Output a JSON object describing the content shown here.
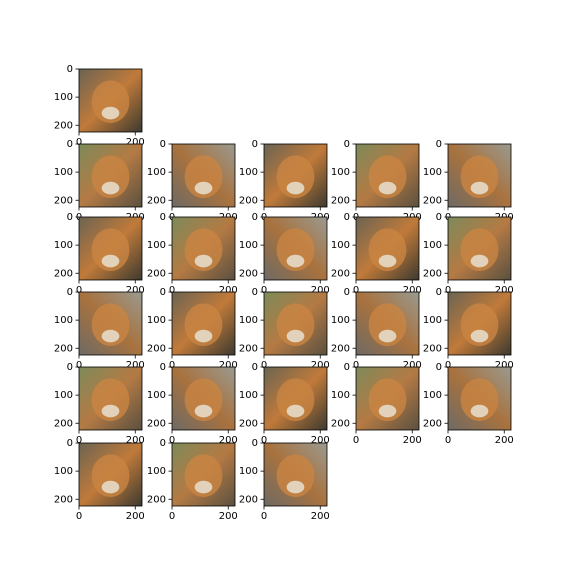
{
  "chart_data": [
    {
      "type": "image",
      "xlim": [
        0,
        224
      ],
      "ylim": [
        224,
        0
      ],
      "xticks": [
        0,
        200
      ],
      "yticks": [
        0,
        100,
        200
      ]
    },
    {
      "type": "image",
      "xlim": [
        0,
        224
      ],
      "ylim": [
        224,
        0
      ],
      "xticks": [
        0,
        200
      ],
      "yticks": [
        0,
        100,
        200
      ]
    },
    {
      "type": "image",
      "xlim": [
        0,
        224
      ],
      "ylim": [
        224,
        0
      ],
      "xticks": [
        0,
        200
      ],
      "yticks": [
        0,
        100,
        200
      ]
    },
    {
      "type": "image",
      "xlim": [
        0,
        224
      ],
      "ylim": [
        224,
        0
      ],
      "xticks": [
        0,
        200
      ],
      "yticks": [
        0,
        100,
        200
      ]
    },
    {
      "type": "image",
      "xlim": [
        0,
        224
      ],
      "ylim": [
        224,
        0
      ],
      "xticks": [
        0,
        200
      ],
      "yticks": [
        0,
        100,
        200
      ]
    },
    {
      "type": "image",
      "xlim": [
        0,
        224
      ],
      "ylim": [
        224,
        0
      ],
      "xticks": [
        0,
        200
      ],
      "yticks": [
        0,
        100,
        200
      ]
    },
    {
      "type": "image",
      "xlim": [
        0,
        224
      ],
      "ylim": [
        224,
        0
      ],
      "xticks": [
        0,
        200
      ],
      "yticks": [
        0,
        100,
        200
      ]
    },
    {
      "type": "image",
      "xlim": [
        0,
        224
      ],
      "ylim": [
        224,
        0
      ],
      "xticks": [
        0,
        200
      ],
      "yticks": [
        0,
        100,
        200
      ]
    },
    {
      "type": "image",
      "xlim": [
        0,
        224
      ],
      "ylim": [
        224,
        0
      ],
      "xticks": [
        0,
        200
      ],
      "yticks": [
        0,
        100,
        200
      ]
    },
    {
      "type": "image",
      "xlim": [
        0,
        224
      ],
      "ylim": [
        224,
        0
      ],
      "xticks": [
        0,
        200
      ],
      "yticks": [
        0,
        100,
        200
      ]
    },
    {
      "type": "image",
      "xlim": [
        0,
        224
      ],
      "ylim": [
        224,
        0
      ],
      "xticks": [
        0,
        200
      ],
      "yticks": [
        0,
        100,
        200
      ]
    },
    {
      "type": "image",
      "xlim": [
        0,
        224
      ],
      "ylim": [
        224,
        0
      ],
      "xticks": [
        0,
        200
      ],
      "yticks": [
        0,
        100,
        200
      ]
    },
    {
      "type": "image",
      "xlim": [
        0,
        224
      ],
      "ylim": [
        224,
        0
      ],
      "xticks": [
        0,
        200
      ],
      "yticks": [
        0,
        100,
        200
      ]
    },
    {
      "type": "image",
      "xlim": [
        0,
        224
      ],
      "ylim": [
        224,
        0
      ],
      "xticks": [
        0,
        200
      ],
      "yticks": [
        0,
        100,
        200
      ]
    },
    {
      "type": "image",
      "xlim": [
        0,
        224
      ],
      "ylim": [
        224,
        0
      ],
      "xticks": [
        0,
        200
      ],
      "yticks": [
        0,
        100,
        200
      ]
    },
    {
      "type": "image",
      "xlim": [
        0,
        224
      ],
      "ylim": [
        224,
        0
      ],
      "xticks": [
        0,
        200
      ],
      "yticks": [
        0,
        100,
        200
      ]
    },
    {
      "type": "image",
      "xlim": [
        0,
        224
      ],
      "ylim": [
        224,
        0
      ],
      "xticks": [
        0,
        200
      ],
      "yticks": [
        0,
        100,
        200
      ]
    },
    {
      "type": "image",
      "xlim": [
        0,
        224
      ],
      "ylim": [
        224,
        0
      ],
      "xticks": [
        0,
        200
      ],
      "yticks": [
        0,
        100,
        200
      ]
    },
    {
      "type": "image",
      "xlim": [
        0,
        224
      ],
      "ylim": [
        224,
        0
      ],
      "xticks": [
        0,
        200
      ],
      "yticks": [
        0,
        100,
        200
      ]
    },
    {
      "type": "image",
      "xlim": [
        0,
        224
      ],
      "ylim": [
        224,
        0
      ],
      "xticks": [
        0,
        200
      ],
      "yticks": [
        0,
        100,
        200
      ]
    },
    {
      "type": "image",
      "xlim": [
        0,
        224
      ],
      "ylim": [
        224,
        0
      ],
      "xticks": [
        0,
        200
      ],
      "yticks": [
        0,
        100,
        200
      ]
    },
    {
      "type": "image",
      "xlim": [
        0,
        224
      ],
      "ylim": [
        224,
        0
      ],
      "xticks": [
        0,
        200
      ],
      "yticks": [
        0,
        100,
        200
      ]
    },
    {
      "type": "image",
      "xlim": [
        0,
        224
      ],
      "ylim": [
        224,
        0
      ],
      "xticks": [
        0,
        200
      ],
      "yticks": [
        0,
        100,
        200
      ]
    },
    {
      "type": "image",
      "xlim": [
        0,
        224
      ],
      "ylim": [
        224,
        0
      ],
      "xticks": [
        0,
        200
      ],
      "yticks": [
        0,
        100,
        200
      ]
    }
  ]
}
